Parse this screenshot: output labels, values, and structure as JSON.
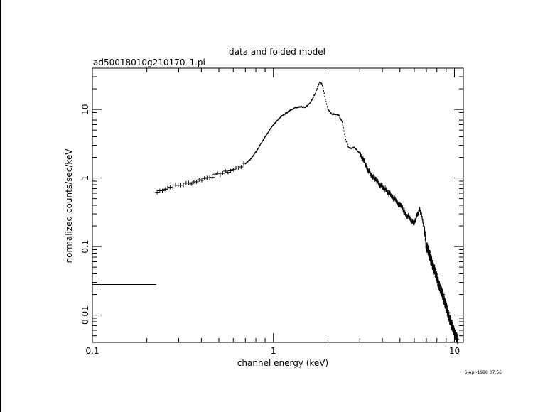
{
  "chart_data": {
    "type": "scatter",
    "title": "data and folded model",
    "subtitle": "ad50018010g210170_1.pi",
    "xlabel": "channel energy (keV)",
    "ylabel": "normalized counts/sec/keV",
    "timestamp": "6-Apr-1998 07:56",
    "x_scale": "log",
    "y_scale": "log",
    "xlim": [
      0.1,
      11.2
    ],
    "ylim": [
      0.004,
      40
    ],
    "x_ticks": [
      {
        "value": 0.1,
        "label": "0.1"
      },
      {
        "value": 1,
        "label": "1"
      },
      {
        "value": 10,
        "label": "10"
      }
    ],
    "y_ticks": [
      {
        "value": 0.01,
        "label": "0.01"
      },
      {
        "value": 0.1,
        "label": "0.1"
      },
      {
        "value": 1,
        "label": "1"
      },
      {
        "value": 10,
        "label": "10"
      }
    ],
    "grid": false,
    "legend": "none",
    "low_bin": {
      "x": 0.113,
      "x_low": 0.1,
      "x_high": 0.225,
      "y": 0.028,
      "y_err": 0.002
    },
    "anchors_x": [
      0.228,
      0.25,
      0.3,
      0.35,
      0.4,
      0.45,
      0.5,
      0.55,
      0.6,
      0.65,
      0.7,
      0.75,
      0.8,
      0.85,
      0.9,
      1.0,
      1.1,
      1.2,
      1.3,
      1.4,
      1.5,
      1.6,
      1.7,
      1.75,
      1.8,
      1.85,
      1.9,
      1.95,
      2.0,
      2.1,
      2.2,
      2.3,
      2.4,
      2.5,
      2.6,
      2.7,
      2.8,
      3.0,
      3.2,
      3.4,
      3.7,
      4.0,
      4.5,
      5.0,
      5.5,
      6.0,
      6.2,
      6.4,
      6.6,
      6.8,
      7.0,
      7.5,
      8.0,
      8.5,
      9.0,
      9.5,
      10.0,
      10.4
    ],
    "anchors_y": [
      0.62,
      0.7,
      0.78,
      0.85,
      0.95,
      1.05,
      1.13,
      1.22,
      1.32,
      1.45,
      1.62,
      1.9,
      2.4,
      3.1,
      4.0,
      6.0,
      7.8,
      9.2,
      10.5,
      11.0,
      10.8,
      12.5,
      17.0,
      21.0,
      25.0,
      24.0,
      18.0,
      13.0,
      10.0,
      8.5,
      8.5,
      8.2,
      6.5,
      3.8,
      2.8,
      2.7,
      2.8,
      2.3,
      1.7,
      1.2,
      0.9,
      0.75,
      0.55,
      0.4,
      0.28,
      0.22,
      0.28,
      0.36,
      0.3,
      0.18,
      0.1,
      0.06,
      0.035,
      0.022,
      0.014,
      0.008,
      0.0055,
      0.0045
    ]
  }
}
